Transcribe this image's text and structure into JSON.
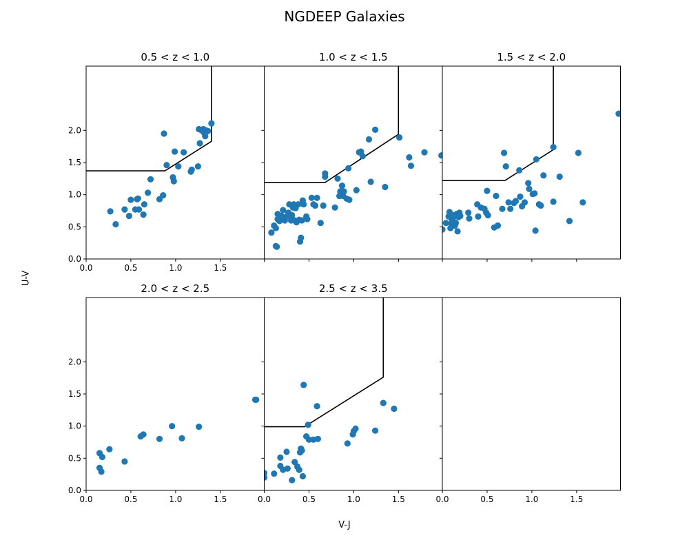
{
  "figure": {
    "title": "NGDEEP Galaxies",
    "xlabel": "V-J",
    "ylabel": "U-V"
  },
  "chart_data": [
    {
      "type": "scatter",
      "title": "0.5 < z < 1.0",
      "xlim": [
        0.0,
        1.99
      ],
      "ylim": [
        0.0,
        3.0
      ],
      "xticks": [
        "0.0",
        "0.5",
        "1.0",
        "1.5"
      ],
      "yticks": [
        "0.0",
        "0.5",
        "1.0",
        "1.5",
        "2.0"
      ],
      "color": "#1f77b4",
      "boundary": [
        [
          0.0,
          1.37
        ],
        [
          0.88,
          1.37
        ],
        [
          1.4,
          1.83
        ],
        [
          1.4,
          3.0
        ]
      ],
      "points": [
        [
          0.27,
          0.74
        ],
        [
          0.33,
          0.54
        ],
        [
          0.43,
          0.77
        ],
        [
          0.48,
          0.67
        ],
        [
          0.5,
          0.92
        ],
        [
          0.55,
          0.77
        ],
        [
          0.57,
          0.93
        ],
        [
          0.58,
          0.94
        ],
        [
          0.59,
          0.77
        ],
        [
          0.64,
          0.69
        ],
        [
          0.65,
          0.85
        ],
        [
          0.69,
          1.03
        ],
        [
          0.72,
          1.24
        ],
        [
          0.82,
          0.93
        ],
        [
          0.86,
          0.99
        ],
        [
          0.87,
          1.95
        ],
        [
          0.9,
          1.46
        ],
        [
          0.97,
          1.27
        ],
        [
          0.98,
          1.21
        ],
        [
          0.99,
          1.67
        ],
        [
          1.03,
          1.44
        ],
        [
          1.09,
          1.66
        ],
        [
          1.17,
          1.36
        ],
        [
          1.18,
          1.39
        ],
        [
          1.25,
          1.44
        ],
        [
          1.26,
          2.02
        ],
        [
          1.27,
          1.8
        ],
        [
          1.29,
          2.0
        ],
        [
          1.31,
          2.02
        ],
        [
          1.32,
          1.96
        ],
        [
          1.33,
          1.91
        ],
        [
          1.34,
          2.0
        ],
        [
          1.36,
          1.99
        ],
        [
          1.4,
          2.11
        ]
      ]
    },
    {
      "type": "scatter",
      "title": "1.0 < z < 1.5",
      "xlim": [
        0.0,
        1.99
      ],
      "ylim": [
        0.0,
        3.0
      ],
      "xticks": [],
      "yticks": [],
      "color": "#1f77b4",
      "boundary": [
        [
          0.0,
          1.19
        ],
        [
          0.68,
          1.19
        ],
        [
          1.5,
          1.94
        ],
        [
          1.5,
          3.0
        ]
      ],
      "points": [
        [
          0.08,
          0.41
        ],
        [
          0.11,
          0.52
        ],
        [
          0.13,
          0.48
        ],
        [
          0.13,
          0.2
        ],
        [
          0.14,
          0.19
        ],
        [
          0.15,
          0.7
        ],
        [
          0.15,
          0.62
        ],
        [
          0.16,
          0.68
        ],
        [
          0.17,
          0.59
        ],
        [
          0.19,
          0.67
        ],
        [
          0.21,
          0.76
        ],
        [
          0.22,
          0.61
        ],
        [
          0.23,
          0.6
        ],
        [
          0.25,
          0.66
        ],
        [
          0.27,
          0.72
        ],
        [
          0.28,
          0.85
        ],
        [
          0.3,
          0.6
        ],
        [
          0.31,
          0.68
        ],
        [
          0.32,
          0.8
        ],
        [
          0.33,
          0.85
        ],
        [
          0.34,
          0.6
        ],
        [
          0.35,
          0.79
        ],
        [
          0.36,
          0.57
        ],
        [
          0.38,
          0.85
        ],
        [
          0.39,
          0.61
        ],
        [
          0.4,
          0.27
        ],
        [
          0.41,
          0.33
        ],
        [
          0.42,
          0.6
        ],
        [
          0.43,
          0.91
        ],
        [
          0.44,
          0.85
        ],
        [
          0.47,
          0.66
        ],
        [
          0.48,
          0.62
        ],
        [
          0.53,
          0.95
        ],
        [
          0.55,
          0.85
        ],
        [
          0.57,
          0.83
        ],
        [
          0.59,
          0.95
        ],
        [
          0.63,
          0.56
        ],
        [
          0.66,
          0.83
        ],
        [
          0.68,
          1.28
        ],
        [
          0.68,
          1.33
        ],
        [
          0.79,
          0.8
        ],
        [
          0.82,
          1.25
        ],
        [
          0.84,
          0.98
        ],
        [
          0.85,
          1.05
        ],
        [
          0.87,
          1.14
        ],
        [
          0.88,
          0.98
        ],
        [
          0.89,
          1.05
        ],
        [
          0.92,
          0.94
        ],
        [
          0.94,
          1.41
        ],
        [
          0.95,
          0.92
        ],
        [
          1.03,
          1.07
        ],
        [
          1.06,
          1.66
        ],
        [
          1.08,
          1.67
        ],
        [
          1.1,
          1.6
        ],
        [
          1.17,
          1.86
        ],
        [
          1.19,
          1.2
        ],
        [
          1.24,
          2.01
        ],
        [
          1.35,
          1.12
        ],
        [
          1.51,
          1.89
        ],
        [
          1.62,
          1.58
        ],
        [
          1.64,
          1.45
        ],
        [
          1.79,
          1.66
        ],
        [
          1.98,
          1.61
        ]
      ]
    },
    {
      "type": "scatter",
      "title": "1.5 < z < 2.0",
      "xlim": [
        0.0,
        1.99
      ],
      "ylim": [
        0.0,
        3.0
      ],
      "xticks": [],
      "yticks": [],
      "color": "#1f77b4",
      "boundary": [
        [
          0.0,
          1.22
        ],
        [
          0.7,
          1.22
        ],
        [
          1.24,
          1.7
        ],
        [
          1.24,
          3.0
        ]
      ],
      "points": [
        [
          0.0,
          0.46
        ],
        [
          0.04,
          0.56
        ],
        [
          0.07,
          0.66
        ],
        [
          0.08,
          0.73
        ],
        [
          0.09,
          0.48
        ],
        [
          0.1,
          0.55
        ],
        [
          0.11,
          0.6
        ],
        [
          0.12,
          0.64
        ],
        [
          0.13,
          0.68
        ],
        [
          0.14,
          0.52
        ],
        [
          0.15,
          0.56
        ],
        [
          0.16,
          0.7
        ],
        [
          0.17,
          0.43
        ],
        [
          0.18,
          0.65
        ],
        [
          0.19,
          0.72
        ],
        [
          0.2,
          0.67
        ],
        [
          0.29,
          0.72
        ],
        [
          0.3,
          0.63
        ],
        [
          0.39,
          0.85
        ],
        [
          0.4,
          0.66
        ],
        [
          0.43,
          0.8
        ],
        [
          0.47,
          0.78
        ],
        [
          0.49,
          0.72
        ],
        [
          0.5,
          1.06
        ],
        [
          0.51,
          0.68
        ],
        [
          0.58,
          0.49
        ],
        [
          0.6,
          0.98
        ],
        [
          0.62,
          0.52
        ],
        [
          0.67,
          0.78
        ],
        [
          0.69,
          1.65
        ],
        [
          0.71,
          1.44
        ],
        [
          0.74,
          0.88
        ],
        [
          0.76,
          0.78
        ],
        [
          0.8,
          0.87
        ],
        [
          0.82,
          0.9
        ],
        [
          0.86,
          1.38
        ],
        [
          0.87,
          0.97
        ],
        [
          0.89,
          0.82
        ],
        [
          0.92,
          0.88
        ],
        [
          0.96,
          1.18
        ],
        [
          0.97,
          1.09
        ],
        [
          1.01,
          1.01
        ],
        [
          1.03,
          1.02
        ],
        [
          1.04,
          0.44
        ],
        [
          1.05,
          1.55
        ],
        [
          1.08,
          0.85
        ],
        [
          1.1,
          0.83
        ],
        [
          1.13,
          1.3
        ],
        [
          1.24,
          1.74
        ],
        [
          1.24,
          0.89
        ],
        [
          1.31,
          1.28
        ],
        [
          1.42,
          0.59
        ],
        [
          1.52,
          1.65
        ],
        [
          1.57,
          0.88
        ],
        [
          1.97,
          2.26
        ]
      ]
    },
    {
      "type": "scatter",
      "title": "2.0 < z < 2.5",
      "xlim": [
        0.0,
        1.99
      ],
      "ylim": [
        0.0,
        3.0
      ],
      "xticks": [
        "0.0",
        "0.5",
        "1.0",
        "1.5"
      ],
      "yticks": [
        "0.0",
        "0.5",
        "1.0",
        "1.5",
        "2.0"
      ],
      "color": "#1f77b4",
      "boundary": [],
      "points": [
        [
          0.15,
          0.58
        ],
        [
          0.15,
          0.35
        ],
        [
          0.17,
          0.29
        ],
        [
          0.18,
          0.52
        ],
        [
          0.26,
          0.64
        ],
        [
          0.43,
          0.45
        ],
        [
          0.61,
          0.84
        ],
        [
          0.64,
          0.87
        ],
        [
          0.82,
          0.8
        ],
        [
          0.96,
          1.0
        ],
        [
          1.07,
          0.81
        ],
        [
          1.26,
          0.99
        ],
        [
          1.89,
          1.41
        ],
        [
          1.9,
          1.41
        ]
      ]
    },
    {
      "type": "scatter",
      "title": "2.5 < z < 3.5",
      "xlim": [
        0.0,
        1.99
      ],
      "ylim": [
        0.0,
        3.0
      ],
      "xticks": [
        "0.0",
        "0.5",
        "1.0",
        "1.5"
      ],
      "yticks": [],
      "color": "#1f77b4",
      "boundary": [
        [
          0.0,
          0.99
        ],
        [
          0.45,
          0.99
        ],
        [
          1.33,
          1.76
        ],
        [
          1.33,
          3.0
        ]
      ],
      "points": [
        [
          0.0,
          0.27
        ],
        [
          0.0,
          0.2
        ],
        [
          0.11,
          0.26
        ],
        [
          0.18,
          0.51
        ],
        [
          0.18,
          0.38
        ],
        [
          0.21,
          0.32
        ],
        [
          0.25,
          0.6
        ],
        [
          0.26,
          0.34
        ],
        [
          0.31,
          0.16
        ],
        [
          0.34,
          0.44
        ],
        [
          0.37,
          0.37
        ],
        [
          0.39,
          0.32
        ],
        [
          0.4,
          0.59
        ],
        [
          0.41,
          0.65
        ],
        [
          0.42,
          0.62
        ],
        [
          0.43,
          0.22
        ],
        [
          0.44,
          1.64
        ],
        [
          0.47,
          0.84
        ],
        [
          0.49,
          1.02
        ],
        [
          0.5,
          0.79
        ],
        [
          0.55,
          0.79
        ],
        [
          0.59,
          1.31
        ],
        [
          0.6,
          0.8
        ],
        [
          0.93,
          0.73
        ],
        [
          0.99,
          0.87
        ],
        [
          1.0,
          0.92
        ],
        [
          1.02,
          0.96
        ],
        [
          1.24,
          0.93
        ],
        [
          1.33,
          1.36
        ],
        [
          1.45,
          1.27
        ]
      ]
    },
    {
      "type": "scatter",
      "title": "",
      "xlim": [
        0.0,
        1.99
      ],
      "ylim": [
        0.0,
        3.0
      ],
      "xticks": [
        "0.0",
        "0.5",
        "1.0",
        "1.5"
      ],
      "yticks": [],
      "color": "#1f77b4",
      "boundary": [],
      "points": []
    }
  ]
}
